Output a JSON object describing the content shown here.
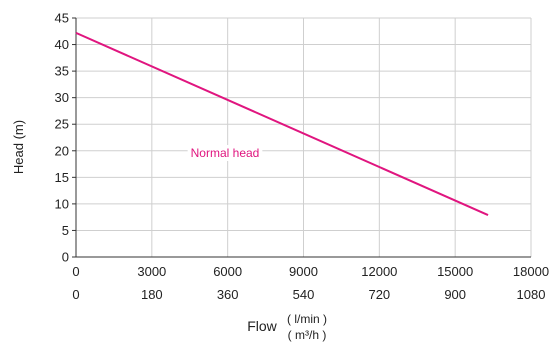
{
  "chart_data": {
    "type": "line",
    "ylabel": "Head (m)",
    "xlabel": "Flow",
    "x_units": [
      "( l/min )",
      "( m³/h )"
    ],
    "xlim": [
      0,
      18000
    ],
    "ylim": [
      0,
      45
    ],
    "x_ticks": [
      "0",
      "3000",
      "6000",
      "9000",
      "12000",
      "15000",
      "18000"
    ],
    "x_ticks_secondary": [
      "0",
      "180",
      "360",
      "540",
      "720",
      "900",
      "1080"
    ],
    "y_ticks": [
      "0",
      "5",
      "10",
      "15",
      "20",
      "25",
      "30",
      "35",
      "40",
      "45"
    ],
    "grid": true,
    "series": [
      {
        "name": "Normal head",
        "color": "#e0157f",
        "x": [
          0,
          16300
        ],
        "y": [
          42.2,
          7.9
        ]
      }
    ]
  }
}
